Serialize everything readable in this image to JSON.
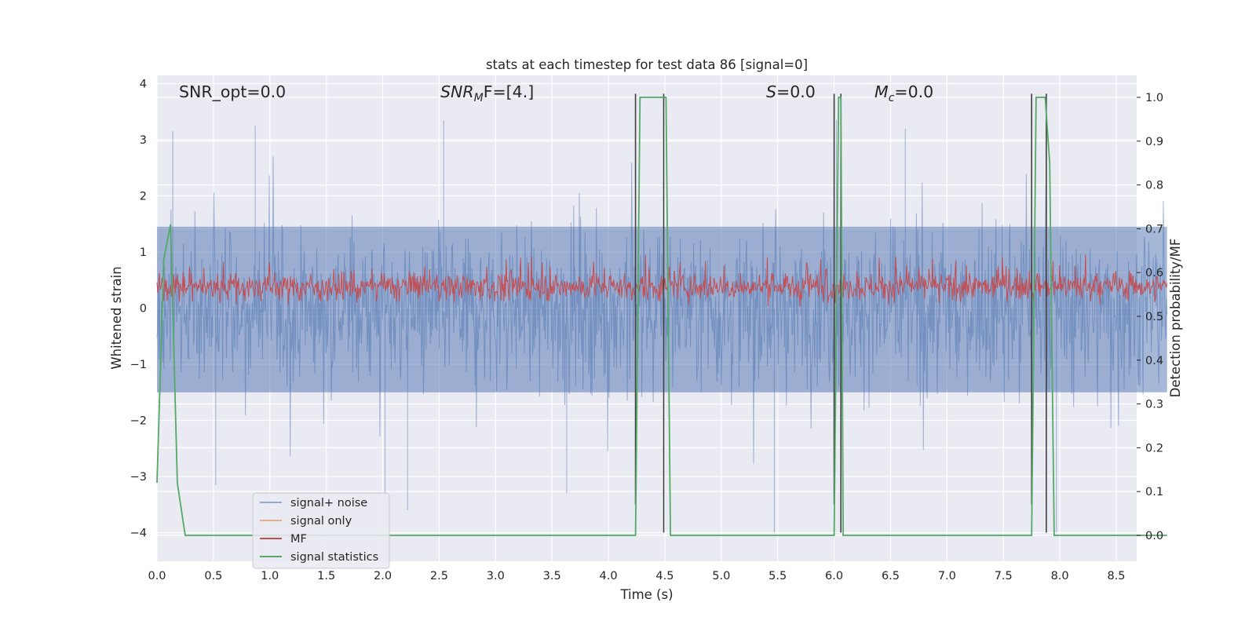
{
  "chart_data": {
    "type": "line",
    "title": "stats at each timestep for test data 86 [signal=0]",
    "xlabel": "Time (s)",
    "ylabel": "Whitened strain",
    "ylabel_right": "Detection probability/MF",
    "xlim": [
      0.0,
      9.0
    ],
    "ylim": [
      -4.3,
      4.2
    ],
    "ylim_right": [
      -0.05,
      1.05
    ],
    "xticks": [
      "0.0",
      "0.5",
      "1.0",
      "1.5",
      "2.0",
      "2.5",
      "3.0",
      "3.5",
      "4.0",
      "4.5",
      "5.0",
      "5.5",
      "6.0",
      "6.5",
      "7.0",
      "7.5",
      "8.0",
      "8.5"
    ],
    "yticks": [
      "4",
      "3",
      "2",
      "1",
      "0",
      "−1",
      "−2",
      "−3",
      "−4"
    ],
    "yticks_right": [
      "1.0",
      "0.9",
      "0.8",
      "0.7",
      "0.6",
      "0.5",
      "0.4",
      "0.3",
      "0.2",
      "0.1",
      "0.0"
    ],
    "grid": true,
    "legend_position": "lower-left",
    "annotations": {
      "snr_opt": "SNR_opt=0.0",
      "snr_mf_main": "SNR",
      "snr_mf_sub": "M",
      "snr_mf_rest": "F=[4.]",
      "s_main": "S",
      "s_rest": "=0.0",
      "mc_main": "M",
      "mc_sub": "c",
      "mc_rest": "=0.0"
    },
    "series": [
      {
        "name": "signal+ noise",
        "color": "#4c72b0",
        "axis": "left",
        "description": "dense whitened noise",
        "amplitude_typical": [
          -2.0,
          2.2
        ],
        "amplitude_extreme": [
          -4.0,
          3.3
        ],
        "extremes": [
          {
            "t": 0.14,
            "y": 3.15
          },
          {
            "t": 0.87,
            "y": 3.25
          },
          {
            "t": 2.54,
            "y": 3.35
          },
          {
            "t": 2.22,
            "y": -3.6
          },
          {
            "t": 2.02,
            "y": -3.4
          },
          {
            "t": 0.52,
            "y": -3.15
          },
          {
            "t": 5.47,
            "y": -4.0
          },
          {
            "t": 7.97,
            "y": -4.0
          },
          {
            "t": 6.02,
            "y": 3.35
          },
          {
            "t": 6.63,
            "y": 3.2
          },
          {
            "t": 3.63,
            "y": -3.3
          }
        ]
      },
      {
        "name": "signal only",
        "color": "#dd8452",
        "axis": "left",
        "values": []
      },
      {
        "name": "MF",
        "color": "#c44e52",
        "axis": "left",
        "description": "matched filter output",
        "amplitude_typical": [
          0.05,
          0.75
        ],
        "amplitude_extreme": [
          0.0,
          1.0
        ]
      },
      {
        "name": "signal statistics",
        "color": "#55a868",
        "axis": "right",
        "x": [
          0.0,
          0.06,
          0.12,
          0.18,
          0.25,
          4.24,
          4.28,
          4.32,
          4.47,
          4.51,
          4.55,
          6.0,
          6.04,
          6.06,
          6.08,
          6.12,
          7.75,
          7.79,
          7.83,
          7.87,
          7.91,
          7.95,
          7.99,
          8.95
        ],
        "values": [
          0.12,
          0.63,
          0.71,
          0.12,
          0.0,
          0.0,
          1.0,
          1.0,
          1.0,
          1.0,
          0.0,
          0.0,
          1.0,
          1.0,
          0.0,
          0.0,
          0.0,
          1.0,
          1.0,
          1.0,
          0.85,
          0.0,
          0.0,
          0.0
        ]
      }
    ],
    "vertical_markers": [
      {
        "t": 4.24,
        "y_top": 3.82,
        "y_bottom": -3.5
      },
      {
        "t": 4.49,
        "y_top": 3.82,
        "y_bottom": -4.0
      },
      {
        "t": 6.0,
        "y_top": 3.82,
        "y_bottom": -3.5
      },
      {
        "t": 6.06,
        "y_top": 3.82,
        "y_bottom": -4.0
      },
      {
        "t": 7.75,
        "y_top": 3.82,
        "y_bottom": -3.5
      },
      {
        "t": 7.88,
        "y_top": 3.82,
        "y_bottom": -4.0
      }
    ],
    "colors": {
      "plot_background": "#eaeaf2",
      "grid": "#ffffff",
      "marker_lines": "#404040"
    }
  }
}
